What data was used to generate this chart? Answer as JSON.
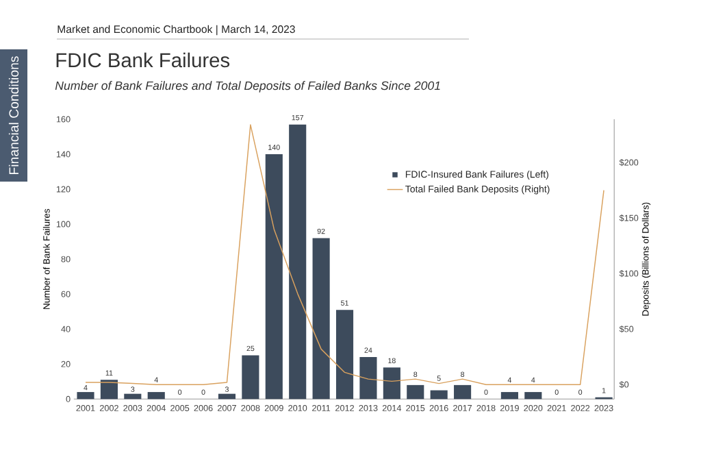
{
  "chart_data": {
    "type": "bar",
    "title": "FDIC Bank Failures",
    "subtitle": "Number of Bank Failures and Total Deposits of Failed Banks Since 2001",
    "ylabel": "Number of Bank Failures",
    "y2label": "Deposits (Billions of Dollars)",
    "annotations": [
      "Market and Economic Chartbook | March 14, 2023",
      "Financial Conditions"
    ],
    "categories": [
      "2001",
      "2002",
      "2003",
      "2004",
      "2005",
      "2006",
      "2007",
      "2008",
      "2009",
      "2010",
      "2011",
      "2012",
      "2013",
      "2014",
      "2015",
      "2016",
      "2017",
      "2018",
      "2019",
      "2020",
      "2021",
      "2022",
      "2023"
    ],
    "series": [
      {
        "name": "FDIC-Insured Bank Failures (Left)",
        "color": "#3d4b5c",
        "data_labels": true,
        "values": [
          4,
          11,
          3,
          4,
          0,
          0,
          3,
          25,
          140,
          157,
          92,
          51,
          24,
          18,
          8,
          5,
          8,
          0,
          4,
          4,
          0,
          0,
          1
        ]
      },
      {
        "name": "Total Failed Bank Deposits (Right)",
        "type": "line",
        "axis": "y2",
        "color": "#d9a15e",
        "values": [
          2,
          2,
          1,
          0,
          0,
          0,
          2,
          234,
          140,
          82,
          32,
          11,
          5,
          3,
          5,
          1,
          5,
          0,
          0,
          0,
          0,
          0,
          175
        ]
      }
    ],
    "ylim": [
      0,
      160
    ],
    "yticks": [
      0,
      20,
      40,
      60,
      80,
      100,
      120,
      140,
      160
    ],
    "y2lim": [
      -13,
      239
    ],
    "y2ticks": [
      {
        "value": 0,
        "label": "$0"
      },
      {
        "value": 50,
        "label": "$50"
      },
      {
        "value": 100,
        "label": "$100"
      },
      {
        "value": 150,
        "label": "$150"
      },
      {
        "value": 200,
        "label": "$200"
      }
    ],
    "legend": "top right"
  }
}
